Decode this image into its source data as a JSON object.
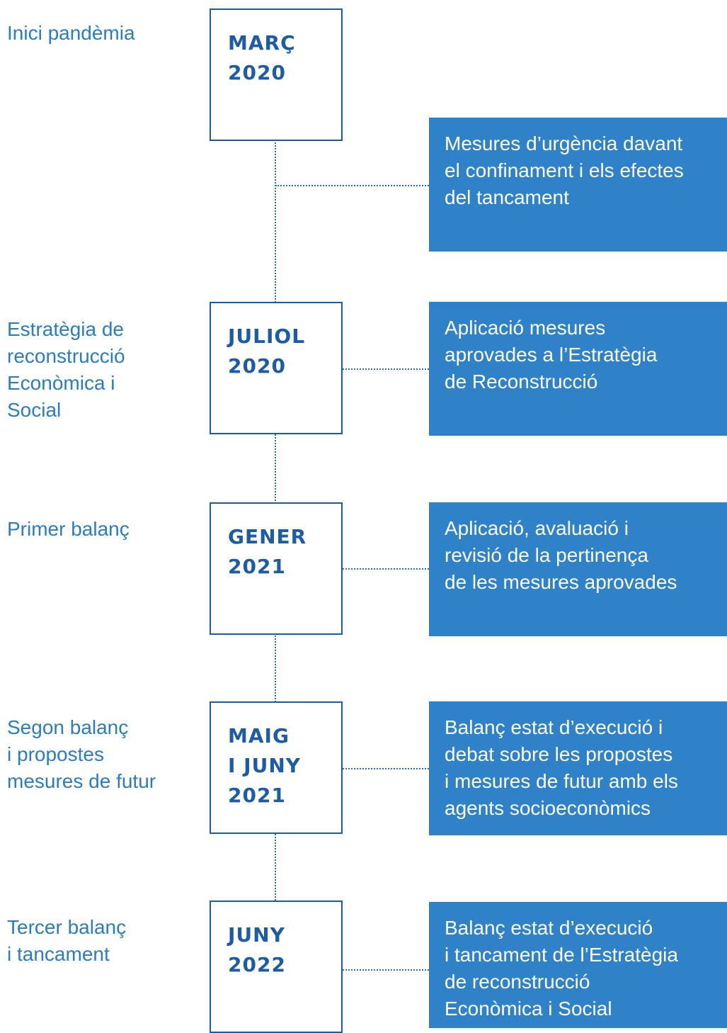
{
  "items": [
    {
      "label": [
        "Inici pandèmia"
      ],
      "date": [
        "MARÇ",
        "2020"
      ],
      "description": [
        "Mesures d’urgència davant",
        "el confinament i els efectes",
        "del tancament"
      ]
    },
    {
      "label": [
        "Estratègia de",
        "reconstrucció",
        "Econòmica i",
        "Social"
      ],
      "date": [
        "JULIOL",
        "2020"
      ],
      "description": [
        "Aplicació mesures",
        "aprovades a l’Estratègia",
        "de Reconstrucció"
      ]
    },
    {
      "label": [
        "Primer balanç"
      ],
      "date": [
        "GENER",
        "2021"
      ],
      "description": [
        "Aplicació, avaluació i",
        "revisió de la pertinença",
        "de les mesures aprovades"
      ]
    },
    {
      "label": [
        "Segon balanç",
        "i propostes",
        "mesures de futur"
      ],
      "date": [
        "MAIG",
        "I JUNY",
        "2021"
      ],
      "description": [
        "Balanç estat d’execució i",
        "debat sobre les propostes",
        "i mesures de futur amb els",
        "agents socioeconòmics"
      ]
    },
    {
      "label": [
        "Tercer balanç",
        "i tancament"
      ],
      "date": [
        "JUNY",
        "2022"
      ],
      "description": [
        "Balanç estat d’execució",
        "i tancament de l’Estratègia",
        "de reconstrucció",
        "Econòmica i Social"
      ]
    }
  ]
}
